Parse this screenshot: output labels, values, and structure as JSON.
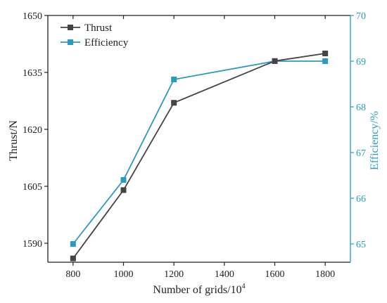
{
  "chart_data": {
    "type": "line",
    "title": "",
    "xlabel": "Number of grids/10",
    "xlabel_superscript": "4",
    "ylabel": "Thrust/N",
    "y2label": "Efficiency/%",
    "x": [
      800,
      1000,
      1200,
      1600,
      1800
    ],
    "xlim": [
      700,
      1900
    ],
    "xticks": [
      800,
      1000,
      1200,
      1400,
      1600,
      1800
    ],
    "ylim": [
      1585,
      1650
    ],
    "yticks": [
      1590,
      1605,
      1620,
      1635,
      1650
    ],
    "y2lim": [
      64.6,
      70
    ],
    "y2ticks": [
      65,
      66,
      67,
      68,
      69,
      70
    ],
    "legend_position": "top-left",
    "grid": false,
    "series": [
      {
        "name": "Thrust",
        "axis": "left",
        "color": "#444444",
        "marker": "square",
        "values": [
          1586,
          1604,
          1627,
          1638,
          1640
        ]
      },
      {
        "name": "Efficiency",
        "axis": "right",
        "color": "#2a9bbd",
        "marker": "square",
        "values": [
          65.0,
          66.4,
          68.6,
          69.0,
          69.0
        ]
      }
    ]
  }
}
